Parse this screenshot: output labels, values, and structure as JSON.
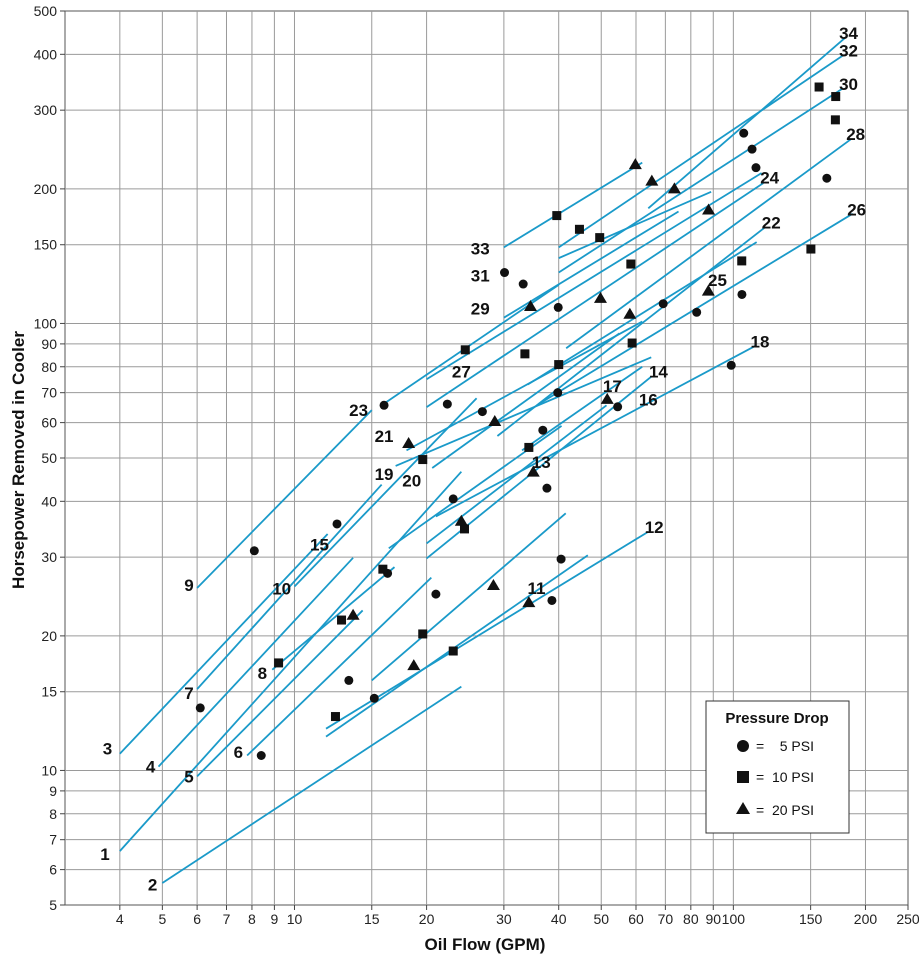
{
  "chart_data": {
    "type": "line",
    "xlabel": "Oil Flow (GPM)",
    "ylabel": "Horsepower Removed in Cooler",
    "x_scale": "log",
    "y_scale": "log",
    "xlim": [
      3,
      250
    ],
    "ylim": [
      5,
      500
    ],
    "grid": true,
    "x_ticks": [
      4,
      5,
      6,
      7,
      8,
      9,
      10,
      15,
      20,
      30,
      40,
      50,
      60,
      70,
      80,
      90,
      100,
      150,
      200,
      250
    ],
    "x_tick_labels": [
      "4",
      "5",
      "6",
      "7",
      "8",
      "9",
      "10",
      "15",
      "20",
      "30",
      "40",
      "50",
      "60",
      "70",
      "80",
      "90",
      "100",
      "150",
      "200",
      "250"
    ],
    "y_ticks": [
      5,
      6,
      7,
      8,
      9,
      10,
      15,
      20,
      30,
      40,
      50,
      60,
      70,
      80,
      90,
      100,
      150,
      200,
      300,
      400,
      500
    ],
    "y_tick_labels": [
      "5",
      "6",
      "7",
      "8",
      "9",
      "10",
      "15",
      "20",
      "30",
      "40",
      "50",
      "60",
      "70",
      "80",
      "90",
      "100",
      "150",
      "200",
      "300",
      "400",
      "500"
    ],
    "legend": {
      "title": "Pressure Drop",
      "position": "bottom-right",
      "entries": [
        {
          "marker": "circle",
          "label": "=    5 PSI"
        },
        {
          "marker": "square",
          "label": "=  10 PSI"
        },
        {
          "marker": "triangle",
          "label": "=  20 PSI"
        }
      ]
    },
    "line_color": "#1a9ac9",
    "series": [
      {
        "name": "1",
        "x": [
          4,
          24
        ],
        "y": [
          6.6,
          46.6
        ],
        "points": []
      },
      {
        "name": "2",
        "x": [
          5.0,
          24
        ],
        "y": [
          5.6,
          15.4
        ],
        "points": []
      },
      {
        "name": "3",
        "x": [
          4,
          11.9
        ],
        "y": [
          10.9,
          33.8
        ],
        "points": [
          {
            "x": 6.1,
            "y": 13.8,
            "m": "circle"
          }
        ]
      },
      {
        "name": "4",
        "x": [
          4.9,
          13.6
        ],
        "y": [
          10.2,
          29.9
        ],
        "points": [
          {
            "x": 12.8,
            "y": 21.7,
            "m": "square"
          }
        ]
      },
      {
        "name": "5",
        "x": [
          6,
          14.3
        ],
        "y": [
          9.7,
          22.8
        ],
        "points": [
          {
            "x": 13.6,
            "y": 22.3,
            "m": "triangle"
          }
        ]
      },
      {
        "name": "6",
        "x": [
          7.8,
          20.5
        ],
        "y": [
          10.8,
          27.0
        ],
        "points": [
          {
            "x": 8.4,
            "y": 10.8,
            "m": "circle"
          }
        ]
      },
      {
        "name": "7",
        "x": [
          6.0,
          15.8
        ],
        "y": [
          15.2,
          43.6
        ],
        "points": [
          {
            "x": 16.3,
            "y": 27.6,
            "m": "circle"
          },
          {
            "x": 9.2,
            "y": 17.4,
            "m": "square"
          }
        ]
      },
      {
        "name": "8",
        "x": [
          8.9,
          16.9
        ],
        "y": [
          16.8,
          28.5
        ],
        "points": [
          {
            "x": 13.3,
            "y": 15.9,
            "m": "circle"
          }
        ]
      },
      {
        "name": "9",
        "x": [
          6.0,
          15.0
        ],
        "y": [
          25.6,
          64.0
        ],
        "points": [
          {
            "x": 8.1,
            "y": 31.0,
            "m": "circle"
          }
        ]
      },
      {
        "name": "10",
        "x": [
          10.0,
          26.0
        ],
        "y": [
          25.8,
          68.0
        ],
        "points": [
          {
            "x": 12.5,
            "y": 35.6,
            "m": "circle"
          }
        ]
      },
      {
        "name": "11",
        "x": [
          11.8,
          46.6
        ],
        "y": [
          11.9,
          30.3
        ],
        "points": [
          {
            "x": 15.2,
            "y": 14.5,
            "m": "circle"
          },
          {
            "x": 23.0,
            "y": 18.5,
            "m": "square"
          },
          {
            "x": 38.6,
            "y": 24.0,
            "m": "circle"
          },
          {
            "x": 34.2,
            "y": 23.8,
            "m": "triangle"
          }
        ]
      },
      {
        "name": "12",
        "x": [
          11.8,
          64.0
        ],
        "y": [
          12.4,
          34.2
        ],
        "points": [
          {
            "x": 12.4,
            "y": 13.2,
            "m": "square"
          },
          {
            "x": 18.7,
            "y": 17.2,
            "m": "triangle"
          }
        ]
      },
      {
        "name": "13",
        "x": [
          15.0,
          41.5
        ],
        "y": [
          15.9,
          37.6
        ],
        "points": [
          {
            "x": 19.6,
            "y": 20.2,
            "m": "square"
          },
          {
            "x": 28.4,
            "y": 26.0,
            "m": "triangle"
          },
          {
            "x": 40.5,
            "y": 29.7,
            "m": "circle"
          }
        ]
      },
      {
        "name": "14",
        "x": [
          20.0,
          65.0
        ],
        "y": [
          29.8,
          76.0
        ],
        "points": [
          {
            "x": 21.0,
            "y": 24.8,
            "m": "circle"
          }
        ]
      },
      {
        "name": "15",
        "x": [
          16.4,
          40.6
        ],
        "y": [
          31.4,
          59.0
        ],
        "points": [
          {
            "x": 23.0,
            "y": 40.5,
            "m": "circle"
          },
          {
            "x": 24.4,
            "y": 34.7,
            "m": "square"
          }
        ]
      },
      {
        "name": "16",
        "x": [
          20.0,
          51.4
        ],
        "y": [
          32.2,
          65.6
        ],
        "points": [
          {
            "x": 24.0,
            "y": 36.2,
            "m": "triangle"
          },
          {
            "x": 37.6,
            "y": 42.8,
            "m": "circle"
          }
        ]
      },
      {
        "name": "17",
        "x": [
          33.0,
          62.0
        ],
        "y": [
          52.0,
          80.0
        ],
        "points": [
          {
            "x": 15.9,
            "y": 28.2,
            "m": "square"
          },
          {
            "x": 35.0,
            "y": 46.6,
            "m": "triangle"
          },
          {
            "x": 54.5,
            "y": 65.1,
            "m": "circle"
          }
        ]
      },
      {
        "name": "18",
        "x": [
          21.0,
          112.0
        ],
        "y": [
          37.0,
          89.0
        ],
        "points": [
          {
            "x": 34.2,
            "y": 52.8,
            "m": "square"
          },
          {
            "x": 51.6,
            "y": 67.8,
            "m": "triangle"
          },
          {
            "x": 98.9,
            "y": 80.6,
            "m": "circle"
          }
        ]
      },
      {
        "name": "19",
        "x": [
          17.0,
          65.0
        ],
        "y": [
          48.0,
          84.0
        ],
        "points": [
          {
            "x": 22.3,
            "y": 66.0,
            "m": "circle"
          },
          {
            "x": 26.8,
            "y": 63.5,
            "m": "circle"
          }
        ]
      },
      {
        "name": "20",
        "x": [
          20.6,
          55.0
        ],
        "y": [
          47.5,
          95.0
        ],
        "points": [
          {
            "x": 19.6,
            "y": 49.6,
            "m": "square"
          },
          {
            "x": 36.8,
            "y": 57.7,
            "m": "circle"
          }
        ]
      },
      {
        "name": "21",
        "x": [
          18.0,
          62.0
        ],
        "y": [
          52.0,
          101.0
        ],
        "points": [
          {
            "x": 18.2,
            "y": 54.0,
            "m": "triangle"
          },
          {
            "x": 28.6,
            "y": 60.5,
            "m": "triangle"
          },
          {
            "x": 39.8,
            "y": 70.0,
            "m": "circle"
          },
          {
            "x": 58.8,
            "y": 90.4,
            "m": "square"
          }
        ]
      },
      {
        "name": "22",
        "x": [
          29.0,
          118.0
        ],
        "y": [
          56.0,
          164.0
        ],
        "points": [
          {
            "x": 40.0,
            "y": 80.9,
            "m": "square"
          },
          {
            "x": 69.2,
            "y": 110.7,
            "m": "circle"
          }
        ]
      },
      {
        "name": "23",
        "x": [
          15.8,
          40.0
        ],
        "y": [
          65.6,
          122.0
        ],
        "points": [
          {
            "x": 16.0,
            "y": 65.6,
            "m": "circle"
          }
        ]
      },
      {
        "name": "24",
        "x": [
          20.0,
          117.0
        ],
        "y": [
          65.0,
          206.0
        ],
        "points": [
          {
            "x": 24.5,
            "y": 87.3,
            "m": "square"
          },
          {
            "x": 39.9,
            "y": 108.6,
            "m": "circle"
          },
          {
            "x": 82.5,
            "y": 105.9,
            "m": "circle"
          }
        ]
      },
      {
        "name": "25",
        "x": [
          34.0,
          113.0
        ],
        "y": [
          73.0,
          152.0
        ],
        "points": [
          {
            "x": 33.5,
            "y": 85.5,
            "m": "square"
          },
          {
            "x": 58.1,
            "y": 105.1,
            "m": "triangle"
          },
          {
            "x": 87.7,
            "y": 118.4,
            "m": "triangle"
          }
        ]
      },
      {
        "name": "26",
        "x": [
          36.0,
          187.0
        ],
        "y": [
          66.0,
          176.0
        ],
        "points": [
          {
            "x": 104.6,
            "y": 116.1,
            "m": "circle"
          },
          {
            "x": 150.2,
            "y": 146.7,
            "m": "square"
          }
        ]
      },
      {
        "name": "27",
        "x": [
          20.0,
          116.0
        ],
        "y": [
          75.0,
          217.0
        ],
        "points": [
          {
            "x": 49.8,
            "y": 114.1,
            "m": "triangle"
          }
        ]
      },
      {
        "name": "28",
        "x": [
          41.6,
          185.0
        ],
        "y": [
          88.0,
          258.0
        ],
        "points": [
          {
            "x": 58.4,
            "y": 135.8,
            "m": "square"
          },
          {
            "x": 104.5,
            "y": 138.0,
            "m": "square"
          },
          {
            "x": 163.3,
            "y": 211.3,
            "m": "circle"
          }
        ]
      },
      {
        "name": "29",
        "x": [
          30.0,
          75.0
        ],
        "y": [
          103.0,
          178.0
        ],
        "points": [
          {
            "x": 34.5,
            "y": 109.4,
            "m": "triangle"
          },
          {
            "x": 33.2,
            "y": 122.5,
            "m": "circle"
          }
        ]
      },
      {
        "name": "30",
        "x": [
          40.0,
          178.0
        ],
        "y": [
          130.0,
          336.0
        ],
        "points": [
          {
            "x": 73.4,
            "y": 200.5,
            "m": "triangle"
          },
          {
            "x": 112.6,
            "y": 223.1,
            "m": "circle"
          },
          {
            "x": 170.8,
            "y": 285.4,
            "m": "square"
          }
        ]
      },
      {
        "name": "31",
        "x": [
          40.0,
          89.0
        ],
        "y": [
          140.0,
          197.0
        ],
        "points": [
          {
            "x": 30.1,
            "y": 130.0,
            "m": "circle"
          },
          {
            "x": 49.6,
            "y": 155.6,
            "m": "square"
          },
          {
            "x": 87.8,
            "y": 179.8,
            "m": "triangle"
          }
        ]
      },
      {
        "name": "32",
        "x": [
          40.0,
          178.0
        ],
        "y": [
          148.0,
          398.0
        ],
        "points": [
          {
            "x": 44.6,
            "y": 162.4,
            "m": "square"
          },
          {
            "x": 65.2,
            "y": 208.7,
            "m": "triangle"
          },
          {
            "x": 110.3,
            "y": 245.4,
            "m": "circle"
          },
          {
            "x": 171.1,
            "y": 321.8,
            "m": "square"
          }
        ]
      },
      {
        "name": "33",
        "x": [
          30.0,
          62.0
        ],
        "y": [
          148.0,
          229.0
        ],
        "points": [
          {
            "x": 39.6,
            "y": 174.3,
            "m": "square"
          },
          {
            "x": 59.8,
            "y": 227.2,
            "m": "triangle"
          }
        ]
      },
      {
        "name": "34",
        "x": [
          64.0,
          180.0
        ],
        "y": [
          181.0,
          436.0
        ],
        "points": [
          {
            "x": 105.6,
            "y": 266.5,
            "m": "circle"
          },
          {
            "x": 156.8,
            "y": 338.0,
            "m": "square"
          }
        ]
      }
    ],
    "curve_labels": [
      {
        "text": "1",
        "x": 3.7,
        "y": 6.5
      },
      {
        "text": "2",
        "x": 4.75,
        "y": 5.55
      },
      {
        "text": "3",
        "x": 3.75,
        "y": 11.2
      },
      {
        "text": "4",
        "x": 4.7,
        "y": 10.2
      },
      {
        "text": "5",
        "x": 5.75,
        "y": 9.7
      },
      {
        "text": "6",
        "x": 7.45,
        "y": 11.0
      },
      {
        "text": "7",
        "x": 5.75,
        "y": 14.9
      },
      {
        "text": "8",
        "x": 8.45,
        "y": 16.5
      },
      {
        "text": "9",
        "x": 5.75,
        "y": 26.0
      },
      {
        "text": "10",
        "x": 9.35,
        "y": 25.5
      },
      {
        "text": "11",
        "x": 35.6,
        "y": 25.6
      },
      {
        "text": "12",
        "x": 66.0,
        "y": 35.0
      },
      {
        "text": "13",
        "x": 36.5,
        "y": 49.0
      },
      {
        "text": "14",
        "x": 67.5,
        "y": 78.0
      },
      {
        "text": "15",
        "x": 11.4,
        "y": 32.0
      },
      {
        "text": "16",
        "x": 64.0,
        "y": 67.5
      },
      {
        "text": "17",
        "x": 53.0,
        "y": 72.5
      },
      {
        "text": "18",
        "x": 115.0,
        "y": 91.0
      },
      {
        "text": "19",
        "x": 16.0,
        "y": 46.0
      },
      {
        "text": "20",
        "x": 18.5,
        "y": 44.5
      },
      {
        "text": "21",
        "x": 16.0,
        "y": 56.0
      },
      {
        "text": "22",
        "x": 122.0,
        "y": 168.0
      },
      {
        "text": "23",
        "x": 14.0,
        "y": 64.0
      },
      {
        "text": "24",
        "x": 121.0,
        "y": 212.0
      },
      {
        "text": "25",
        "x": 92.0,
        "y": 125.0
      },
      {
        "text": "26",
        "x": 191.0,
        "y": 180.0
      },
      {
        "text": "27",
        "x": 24.0,
        "y": 78.0
      },
      {
        "text": "28",
        "x": 190.0,
        "y": 265.0
      },
      {
        "text": "29",
        "x": 26.5,
        "y": 108.0
      },
      {
        "text": "30",
        "x": 183.0,
        "y": 343.0
      },
      {
        "text": "31",
        "x": 26.5,
        "y": 128.0
      },
      {
        "text": "32",
        "x": 183.0,
        "y": 408.0
      },
      {
        "text": "33",
        "x": 26.5,
        "y": 147.0
      },
      {
        "text": "34",
        "x": 183.0,
        "y": 447.0
      }
    ]
  }
}
